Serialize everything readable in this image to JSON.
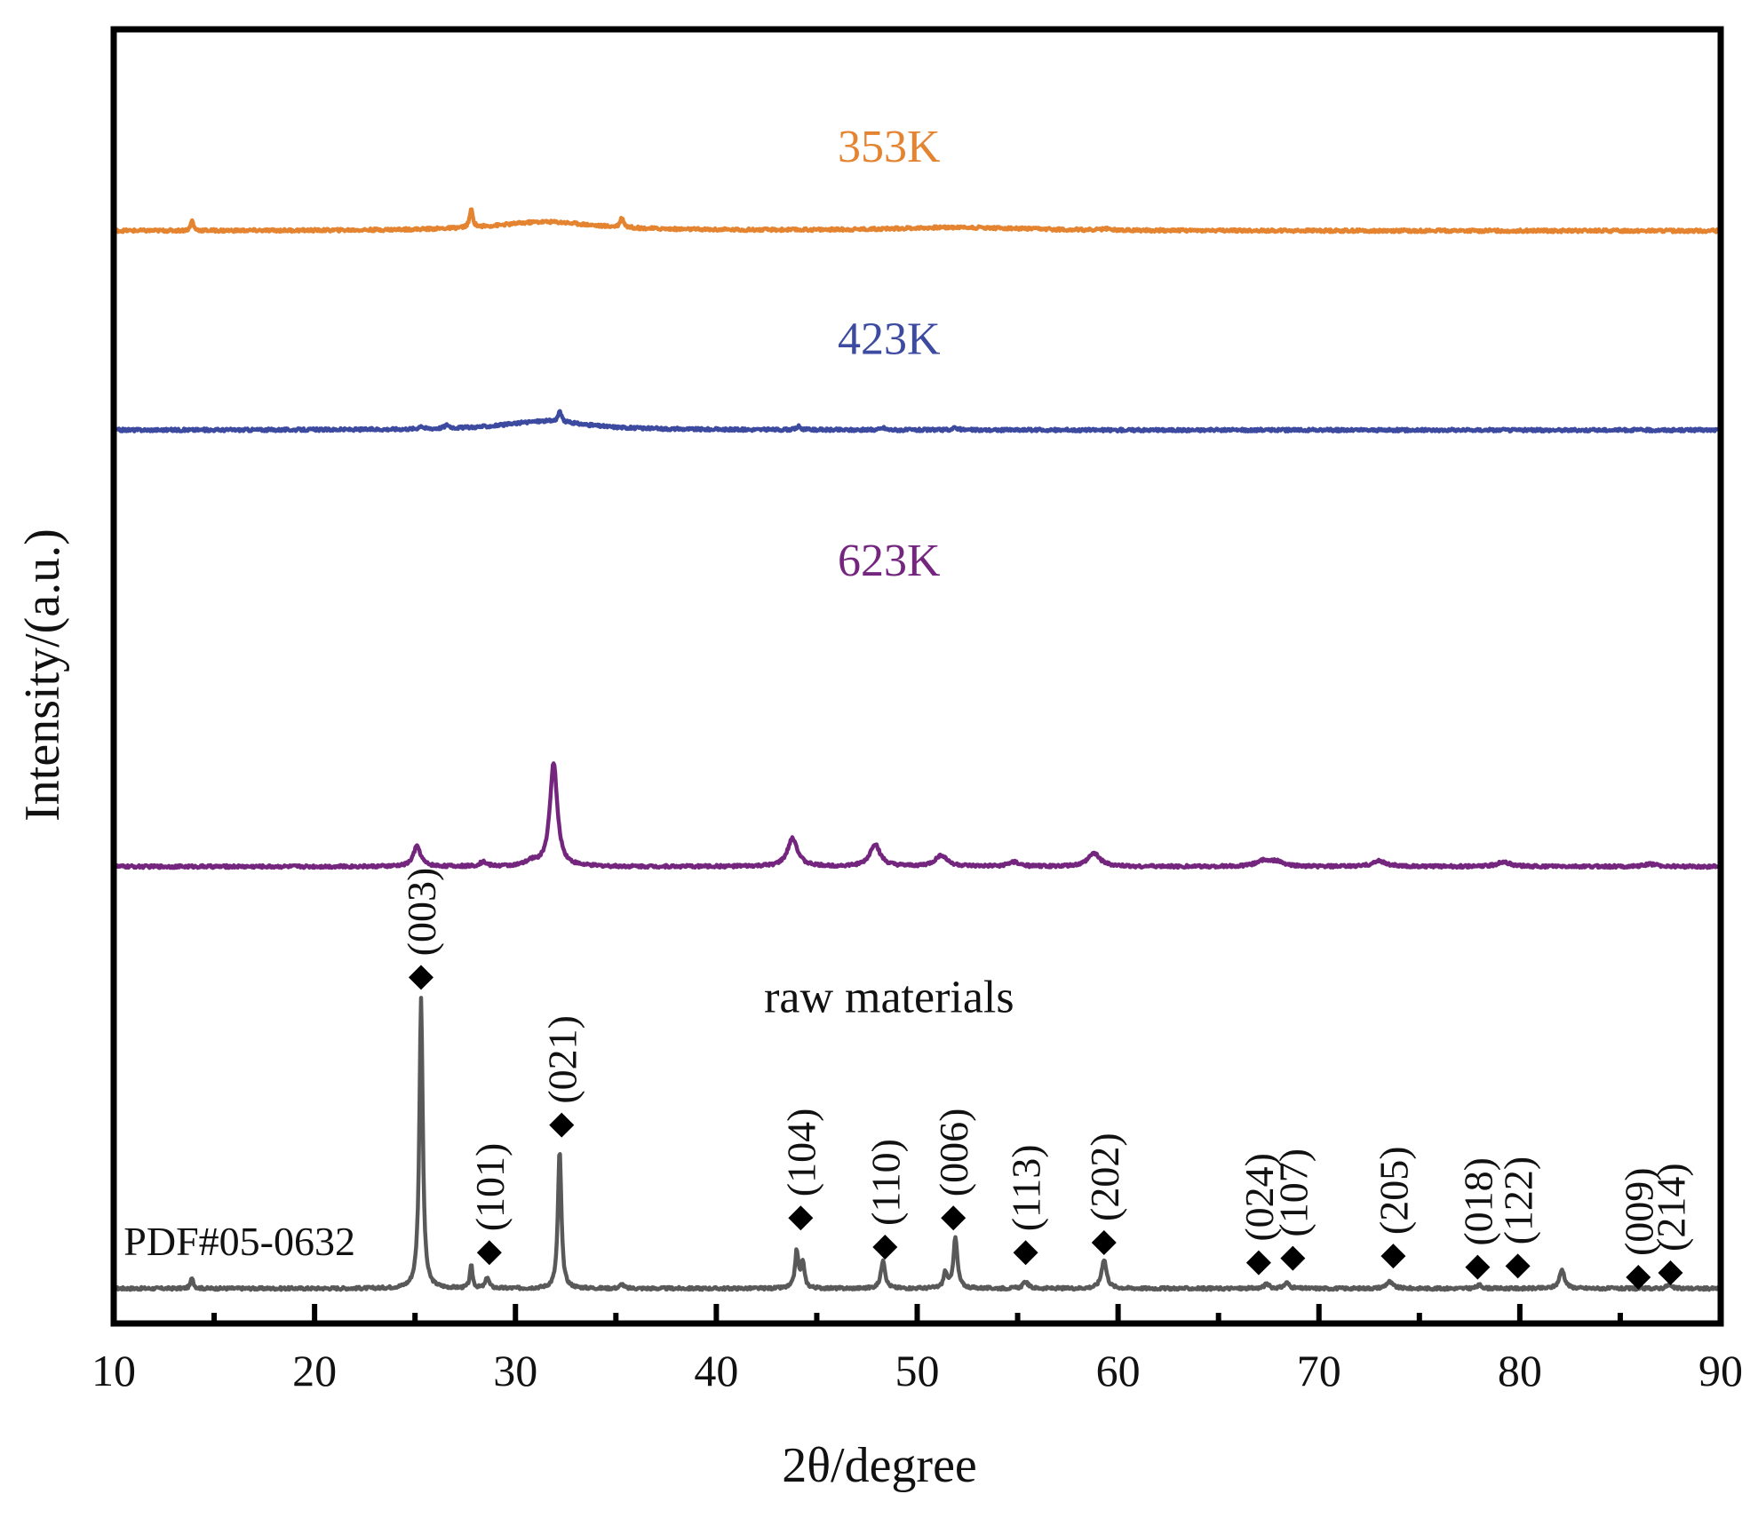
{
  "chart_data": {
    "type": "line",
    "title": "",
    "xlabel": "2θ/degree",
    "ylabel": "Intensity/(a.u.)",
    "xlim": [
      10,
      90
    ],
    "ylim": [
      0,
      100
    ],
    "x_ticks": [
      10,
      20,
      30,
      40,
      50,
      60,
      70,
      80,
      90
    ],
    "x_tick_labels": [
      "10",
      "20",
      "30",
      "40",
      "50",
      "60",
      "70",
      "80",
      "90"
    ],
    "x_minor_ticks": [
      15,
      25,
      35,
      45,
      55,
      65,
      75,
      85
    ],
    "yticks_shown": false,
    "grid": false,
    "series": [
      {
        "name": "raw materials",
        "color": "#595959",
        "baseline": 6.3,
        "peaks": [
          {
            "x": 13.9,
            "h": 1.0,
            "w": 0.08
          },
          {
            "x": 25.3,
            "h": 26.0,
            "w": 0.1
          },
          {
            "x": 27.8,
            "h": 2.0,
            "w": 0.08
          },
          {
            "x": 28.6,
            "h": 1.0,
            "w": 0.1
          },
          {
            "x": 32.2,
            "h": 12.4,
            "w": 0.1
          },
          {
            "x": 35.3,
            "h": 0.4,
            "w": 0.1
          },
          {
            "x": 44.0,
            "h": 3.3,
            "w": 0.1
          },
          {
            "x": 44.3,
            "h": 2.3,
            "w": 0.1
          },
          {
            "x": 48.3,
            "h": 2.6,
            "w": 0.12
          },
          {
            "x": 51.4,
            "h": 1.4,
            "w": 0.1
          },
          {
            "x": 51.9,
            "h": 4.5,
            "w": 0.12
          },
          {
            "x": 55.4,
            "h": 0.6,
            "w": 0.15
          },
          {
            "x": 59.3,
            "h": 2.6,
            "w": 0.15
          },
          {
            "x": 67.4,
            "h": 0.4,
            "w": 0.15
          },
          {
            "x": 68.4,
            "h": 0.5,
            "w": 0.15
          },
          {
            "x": 73.5,
            "h": 0.6,
            "w": 0.2
          },
          {
            "x": 78.0,
            "h": 0.3,
            "w": 0.15
          },
          {
            "x": 82.1,
            "h": 1.7,
            "w": 0.15
          },
          {
            "x": 87.4,
            "h": 0.3,
            "w": 0.15
          }
        ]
      },
      {
        "name": "623K",
        "color": "#74267f",
        "baseline": 44.0,
        "peaks": [
          {
            "x": 25.1,
            "h": 1.8,
            "w": 0.22
          },
          {
            "x": 28.4,
            "h": 0.4,
            "w": 0.2
          },
          {
            "x": 30.8,
            "h": 0.4,
            "w": 0.3
          },
          {
            "x": 31.9,
            "h": 9.3,
            "w": 0.22
          },
          {
            "x": 43.8,
            "h": 2.5,
            "w": 0.3
          },
          {
            "x": 47.9,
            "h": 2.0,
            "w": 0.3
          },
          {
            "x": 51.2,
            "h": 1.0,
            "w": 0.35
          },
          {
            "x": 54.8,
            "h": 0.4,
            "w": 0.3
          },
          {
            "x": 58.8,
            "h": 1.2,
            "w": 0.35
          },
          {
            "x": 67.2,
            "h": 0.5,
            "w": 0.4
          },
          {
            "x": 67.9,
            "h": 0.4,
            "w": 0.4
          },
          {
            "x": 73.0,
            "h": 0.5,
            "w": 0.4
          },
          {
            "x": 79.2,
            "h": 0.4,
            "w": 0.4
          },
          {
            "x": 86.5,
            "h": 0.2,
            "w": 0.4
          }
        ]
      },
      {
        "name": "423K",
        "color": "#3c4aa0",
        "baseline": 83.0,
        "peaks": [
          {
            "x": 25.3,
            "h": 0.3,
            "w": 0.1
          },
          {
            "x": 26.6,
            "h": 0.3,
            "w": 0.15
          },
          {
            "x": 31.5,
            "h": 0.8,
            "w": 2.5
          },
          {
            "x": 32.2,
            "h": 0.9,
            "w": 0.1
          },
          {
            "x": 44.1,
            "h": 0.3,
            "w": 0.12
          },
          {
            "x": 48.3,
            "h": 0.2,
            "w": 0.12
          },
          {
            "x": 51.9,
            "h": 0.2,
            "w": 0.15
          }
        ]
      },
      {
        "name": "353K",
        "color": "#e48431",
        "baseline": 100.8,
        "peaks": [
          {
            "x": 13.9,
            "h": 0.9,
            "w": 0.08
          },
          {
            "x": 27.8,
            "h": 1.6,
            "w": 0.09
          },
          {
            "x": 31.5,
            "h": 0.8,
            "w": 3.0
          },
          {
            "x": 35.3,
            "h": 0.9,
            "w": 0.1
          },
          {
            "x": 52.0,
            "h": 0.3,
            "w": 4.0
          },
          {
            "x": 59.4,
            "h": 0.1,
            "w": 0.3
          }
        ]
      }
    ],
    "series_labels": [
      {
        "text": "353K",
        "color": "#e48431",
        "x": 48.6,
        "y": 107.0
      },
      {
        "text": "423K",
        "color": "#3c4aa0",
        "x": 48.6,
        "y": 89.8
      },
      {
        "text": "623K",
        "color": "#74267f",
        "x": 48.6,
        "y": 70.0
      },
      {
        "text": "raw materials",
        "color": "#111111",
        "x": 48.6,
        "y": 31.0
      }
    ],
    "reference_label": {
      "text": "PDF#05-0632",
      "x": 10.5,
      "y": 9.3
    },
    "reflection_markers": [
      {
        "hkl": "(003)",
        "x": 25.3,
        "y": 34.1
      },
      {
        "hkl": "(101)",
        "x": 28.7,
        "y": 9.5
      },
      {
        "hkl": "(021)",
        "x": 32.3,
        "y": 20.9
      },
      {
        "hkl": "(104)",
        "x": 44.2,
        "y": 12.6
      },
      {
        "hkl": "(110)",
        "x": 48.4,
        "y": 10.0
      },
      {
        "hkl": "(006)",
        "x": 51.8,
        "y": 12.6
      },
      {
        "hkl": "(113)",
        "x": 55.4,
        "y": 9.5
      },
      {
        "hkl": "(202)",
        "x": 59.3,
        "y": 10.4
      },
      {
        "hkl": "(024)",
        "x": 67.0,
        "y": 8.6
      },
      {
        "hkl": "(107)",
        "x": 68.7,
        "y": 9.0
      },
      {
        "hkl": "(205)",
        "x": 73.7,
        "y": 9.2
      },
      {
        "hkl": "(018)",
        "x": 77.9,
        "y": 8.2
      },
      {
        "hkl": "(122)",
        "x": 79.9,
        "y": 8.3
      },
      {
        "hkl": "(009)",
        "x": 85.9,
        "y": 7.3
      },
      {
        "hkl": "(214)",
        "x": 87.5,
        "y": 7.7
      }
    ]
  }
}
